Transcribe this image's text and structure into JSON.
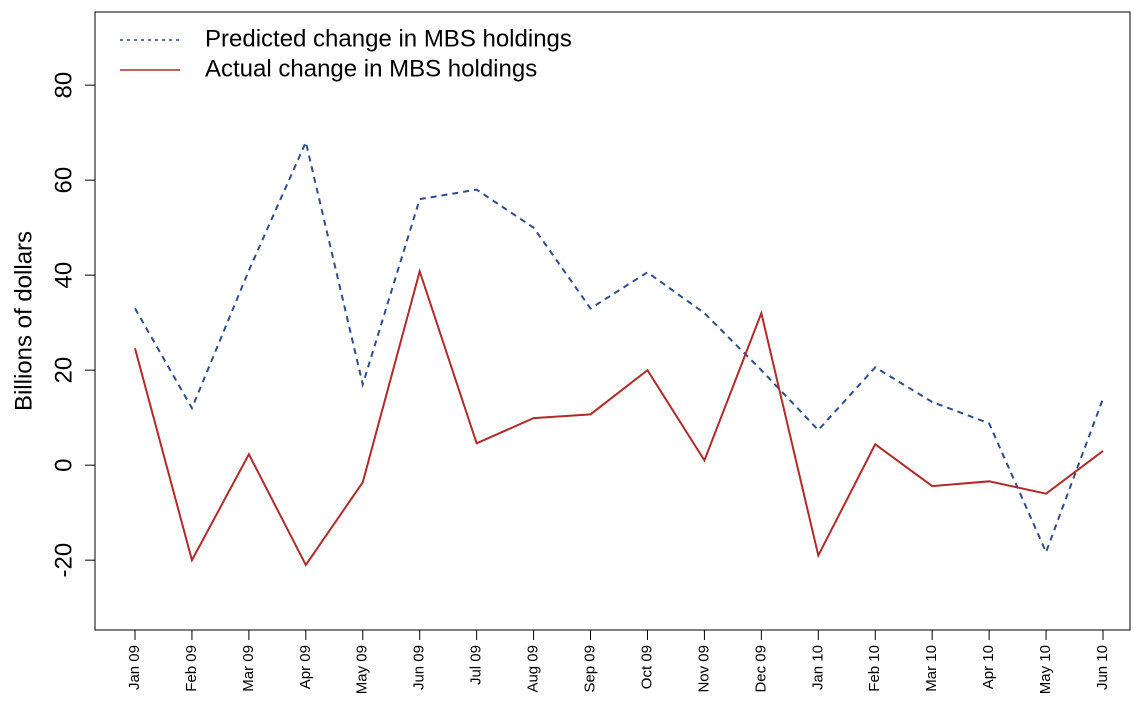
{
  "chart_data": {
    "type": "line",
    "y_label": "Billions of dollars",
    "categories": [
      "Jan 09",
      "Feb 09",
      "Mar 09",
      "Apr 09",
      "May 09",
      "Jun 09",
      "Jul 09",
      "Aug 09",
      "Sep 09",
      "Oct 09",
      "Nov 09",
      "Dec 09",
      "Jan 10",
      "Feb 10",
      "Mar 10",
      "Apr 10",
      "May 10",
      "Jun 10"
    ],
    "series": [
      {
        "name": "Predicted change in MBS holdings",
        "color": "#2e4d8c",
        "dash": true,
        "values": [
          33,
          12,
          41,
          68,
          17,
          56,
          58,
          50,
          33,
          40.6,
          32,
          20,
          7.4,
          20.6,
          13.3,
          8.8,
          -18.3,
          14
        ]
      },
      {
        "name": "Actual change in MBS holdings",
        "color": "#b22a2a",
        "dash": false,
        "values": [
          24.6,
          -20,
          2.3,
          -21,
          -3.6,
          40.8,
          4.6,
          9.9,
          10.7,
          20,
          1,
          32,
          -19,
          4.4,
          -4.4,
          -3.4,
          -6,
          3
        ]
      }
    ],
    "ylim": [
      -34.7,
      95.4
    ],
    "yticks": [
      -20,
      0,
      20,
      40,
      60,
      80
    ],
    "grid": false,
    "legend": "top-left"
  }
}
